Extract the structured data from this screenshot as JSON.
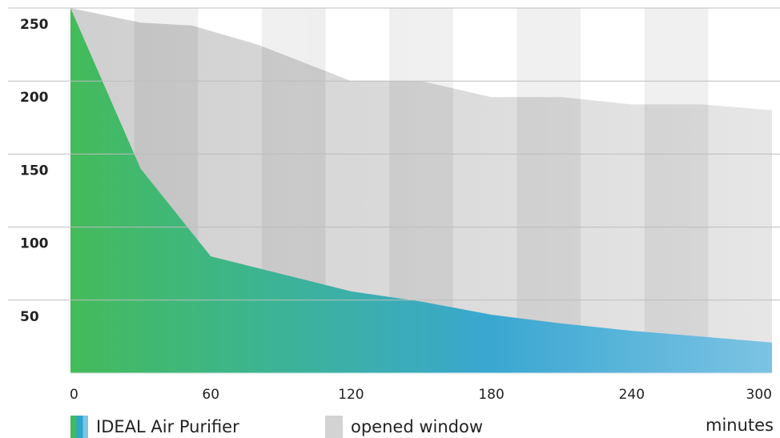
{
  "chart_data": {
    "type": "area",
    "x": [
      0,
      30,
      60,
      90,
      120,
      150,
      180,
      210,
      240,
      270,
      300
    ],
    "xticks": [
      "0",
      "60",
      "120",
      "180",
      "240",
      "300"
    ],
    "yticks": [
      "250",
      "200",
      "150",
      "100",
      "50"
    ],
    "ylim": [
      0,
      250
    ],
    "xlim": [
      0,
      300
    ],
    "xlabel": "minutes",
    "grid": true,
    "legend_position": "bottom",
    "series": [
      {
        "name": "opened window",
        "x": [
          0,
          30,
          52,
          80,
          120,
          150,
          180,
          210,
          240,
          270,
          300
        ],
        "values": [
          250,
          240,
          238,
          225,
          200,
          200,
          189,
          189,
          184,
          184,
          180
        ],
        "color": "#d3d3d3"
      },
      {
        "name": "IDEAL Air Purifier",
        "x": [
          0,
          30,
          60,
          90,
          120,
          150,
          180,
          210,
          240,
          270,
          300
        ],
        "values": [
          250,
          140,
          80,
          68,
          56,
          49,
          40,
          34,
          29,
          25,
          21
        ],
        "color_start": "#44bb5a",
        "color_end": "#7cc3e3"
      }
    ]
  }
}
